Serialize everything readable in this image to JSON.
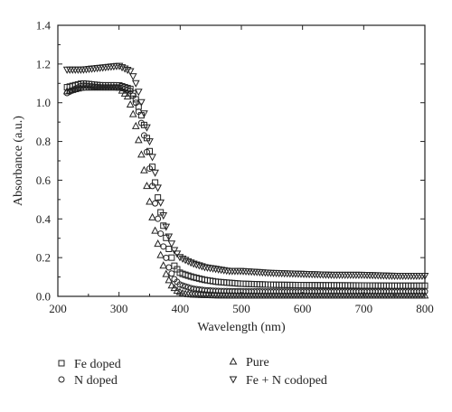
{
  "chart_data": {
    "type": "scatter",
    "title": "",
    "xlabel": "Wavelength (nm)",
    "ylabel": "Absorbance (a.u.)",
    "xlim": [
      200,
      800
    ],
    "ylim": [
      0.0,
      1.4
    ],
    "x_ticks": [
      200,
      300,
      400,
      500,
      600,
      700,
      800
    ],
    "x_tick_labels": [
      "200",
      "300",
      "400",
      "500",
      "600",
      "700",
      "800"
    ],
    "y_ticks": [
      0.0,
      0.2,
      0.4,
      0.6,
      0.8,
      1.0,
      1.2,
      1.4
    ],
    "y_tick_labels": [
      "0.0",
      "0.2",
      "0.4",
      "0.6",
      "0.8",
      "1.0",
      "1.2",
      "1.4"
    ],
    "grid": false,
    "legend_position": "bottom",
    "series": [
      {
        "name": "Fe doped",
        "marker": "square",
        "x": [
          215,
          240,
          270,
          300,
          320,
          330,
          340,
          350,
          360,
          370,
          380,
          390,
          400,
          410,
          420,
          440,
          460,
          500,
          550,
          600,
          650,
          700,
          750,
          800
        ],
        "y": [
          1.08,
          1.1,
          1.09,
          1.09,
          1.07,
          1.0,
          0.9,
          0.75,
          0.57,
          0.4,
          0.26,
          0.16,
          0.12,
          0.11,
          0.1,
          0.085,
          0.075,
          0.065,
          0.06,
          0.058,
          0.057,
          0.056,
          0.055,
          0.055
        ]
      },
      {
        "name": "N doped",
        "marker": "circle",
        "x": [
          215,
          240,
          270,
          300,
          320,
          330,
          340,
          350,
          360,
          370,
          380,
          390,
          400,
          420,
          440,
          460,
          500,
          550,
          600,
          650,
          700,
          750,
          800
        ],
        "y": [
          1.05,
          1.09,
          1.08,
          1.08,
          1.06,
          0.98,
          0.85,
          0.66,
          0.46,
          0.29,
          0.16,
          0.09,
          0.06,
          0.04,
          0.032,
          0.028,
          0.026,
          0.025,
          0.025,
          0.025,
          0.025,
          0.025,
          0.025
        ]
      },
      {
        "name": "Pure",
        "marker": "triangle-up",
        "x": [
          215,
          240,
          270,
          300,
          315,
          325,
          335,
          345,
          355,
          365,
          375,
          385,
          395,
          405,
          420,
          440,
          460,
          500,
          550,
          600,
          650,
          700,
          750,
          800
        ],
        "y": [
          1.06,
          1.08,
          1.08,
          1.08,
          1.03,
          0.92,
          0.76,
          0.58,
          0.4,
          0.25,
          0.13,
          0.06,
          0.03,
          0.015,
          0.01,
          0.008,
          0.006,
          0.005,
          0.005,
          0.005,
          0.005,
          0.005,
          0.005,
          0.005
        ]
      },
      {
        "name": "Fe + N codoped",
        "marker": "triangle-down",
        "x": [
          215,
          240,
          270,
          300,
          320,
          330,
          340,
          350,
          360,
          370,
          380,
          390,
          400,
          420,
          440,
          460,
          480,
          500,
          550,
          600,
          650,
          700,
          750,
          800
        ],
        "y": [
          1.17,
          1.17,
          1.18,
          1.19,
          1.16,
          1.08,
          0.96,
          0.8,
          0.62,
          0.45,
          0.32,
          0.24,
          0.2,
          0.17,
          0.15,
          0.14,
          0.13,
          0.13,
          0.12,
          0.115,
          0.11,
          0.11,
          0.105,
          0.105
        ]
      }
    ]
  }
}
